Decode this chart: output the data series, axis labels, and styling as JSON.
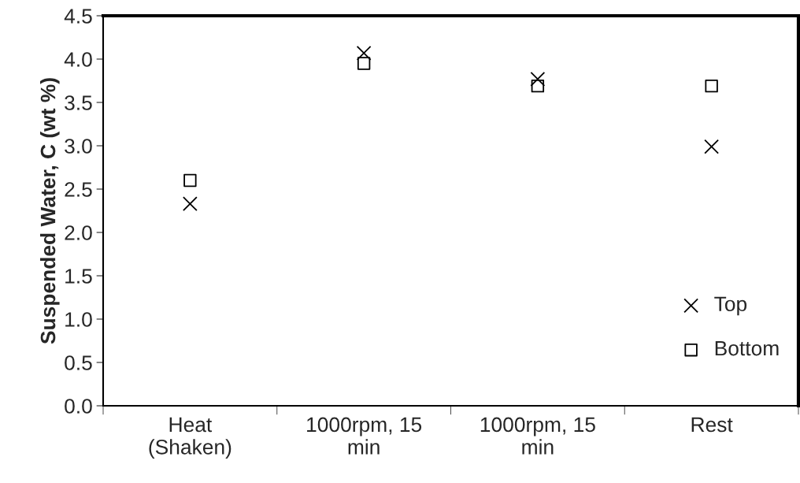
{
  "chart_data": {
    "type": "scatter",
    "ylabel": "Suspended Water, C (wt %)",
    "categories": [
      "Heat\n(Shaken)",
      "1000rpm, 15\nmin",
      "1000rpm, 15\nmin",
      "Rest"
    ],
    "series": [
      {
        "name": "Top",
        "color": "#000000",
        "marker": "cross",
        "values": [
          2.33,
          4.07,
          3.77,
          2.99
        ]
      },
      {
        "name": "Bottom",
        "color": "#000000",
        "marker": "square",
        "values": [
          2.6,
          3.95,
          3.69,
          3.69
        ]
      }
    ],
    "ylim": [
      0,
      4.5
    ],
    "yticks": [
      {
        "value": 0,
        "label": "0.0"
      },
      {
        "value": 0.5,
        "label": "0.5"
      },
      {
        "value": 1,
        "label": "1.0"
      },
      {
        "value": 1.5,
        "label": "1.5"
      },
      {
        "value": 2,
        "label": "2.0"
      },
      {
        "value": 2.5,
        "label": "2.5"
      },
      {
        "value": 3,
        "label": "3.0"
      },
      {
        "value": 3.5,
        "label": "3.5"
      },
      {
        "value": 4,
        "label": "4.0"
      },
      {
        "value": 4.5,
        "label": "4.5"
      }
    ],
    "grid": false,
    "legend": "bottom right"
  }
}
